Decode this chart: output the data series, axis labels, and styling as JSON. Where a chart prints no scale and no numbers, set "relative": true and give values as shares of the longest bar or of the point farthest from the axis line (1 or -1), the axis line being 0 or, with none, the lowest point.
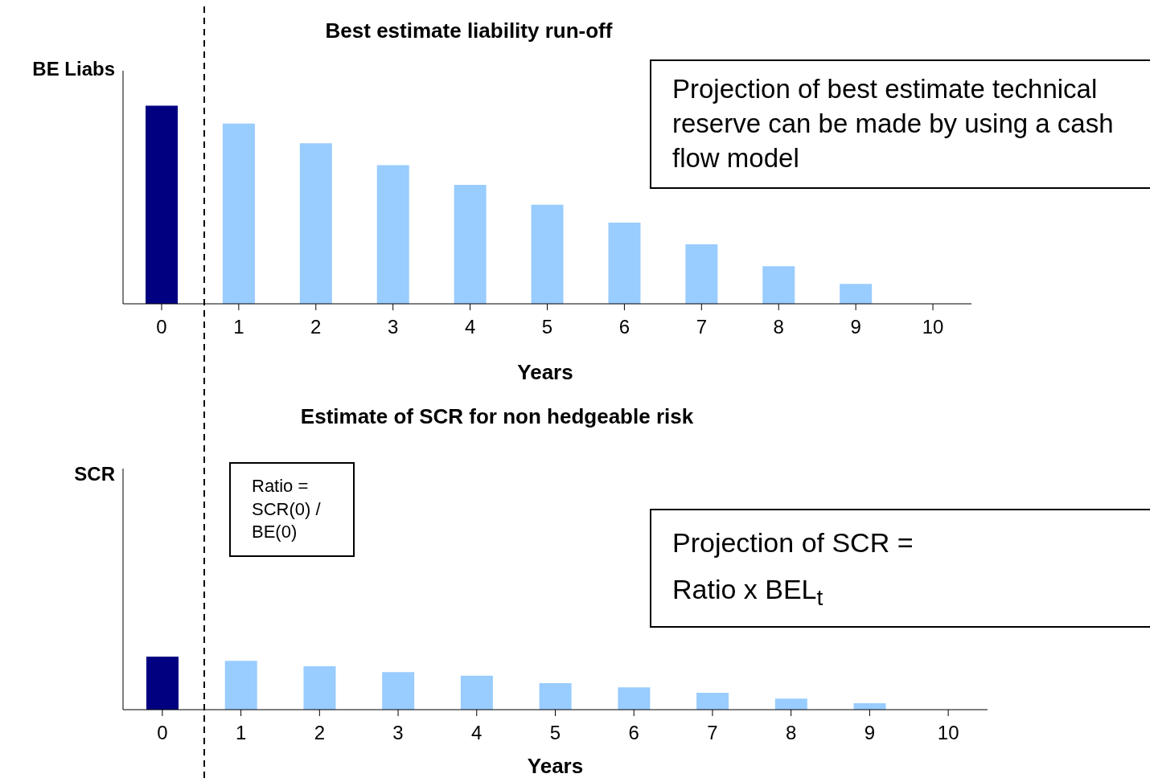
{
  "chart_data": [
    {
      "type": "bar",
      "title": "Best estimate liability run-off",
      "ylabel": "BE Liabs",
      "xlabel": "Years",
      "relative": true,
      "categories": [
        "0",
        "1",
        "2",
        "3",
        "4",
        "5",
        "6",
        "7",
        "8",
        "9",
        "10"
      ],
      "values": [
        1,
        0.91,
        0.81,
        0.7,
        0.6,
        0.5,
        0.41,
        0.3,
        0.19,
        0.1,
        0
      ],
      "colors": [
        "#000080",
        "#99ccff",
        "#99ccff",
        "#99ccff",
        "#99ccff",
        "#99ccff",
        "#99ccff",
        "#99ccff",
        "#99ccff",
        "#99ccff",
        "#99ccff"
      ],
      "annotations": [
        "Projection of best estimate technical reserve can be made by using a cash flow model"
      ]
    },
    {
      "type": "bar",
      "title": "Estimate of SCR for non hedgeable risk",
      "ylabel": "SCR",
      "xlabel": "Years",
      "relative": true,
      "categories": [
        "0",
        "1",
        "2",
        "3",
        "4",
        "5",
        "6",
        "7",
        "8",
        "9",
        "10"
      ],
      "values": [
        1,
        0.92,
        0.82,
        0.71,
        0.64,
        0.5,
        0.42,
        0.32,
        0.21,
        0.12,
        0
      ],
      "colors": [
        "#000080",
        "#99ccff",
        "#99ccff",
        "#99ccff",
        "#99ccff",
        "#99ccff",
        "#99ccff",
        "#99ccff",
        "#99ccff",
        "#99ccff",
        "#99ccff"
      ],
      "annotations": [
        "Ratio = SCR(0) / BE(0)",
        "Projection of SCR = Ratio x BEL$_{t}$"
      ]
    }
  ]
}
